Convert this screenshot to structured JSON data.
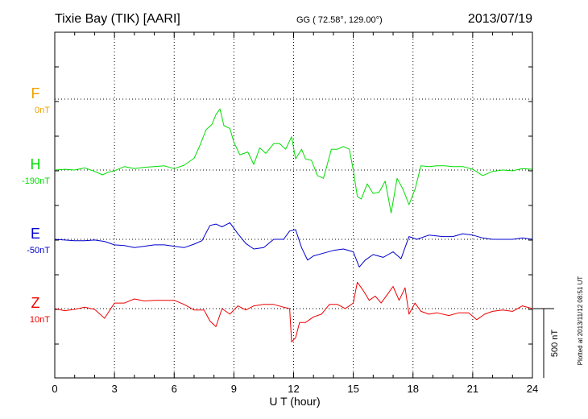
{
  "header": {
    "station": "Tixie Bay (TIK)  [AARI]",
    "coords": "GG ( 72.58°, 129.00°)",
    "date": "2013/07/19"
  },
  "footer": {
    "plotted": "Plotted at 2013/11/12 08:51  UT",
    "scale_label": "500 nT"
  },
  "chart_data": {
    "type": "line",
    "xlabel": "U T (hour)",
    "xlim": [
      0,
      24
    ],
    "xticks": [
      "0",
      "3",
      "6",
      "9",
      "12",
      "15",
      "18",
      "21",
      "24"
    ],
    "scale_bar_nT": 500,
    "grid": true,
    "series": [
      {
        "name": "F",
        "baseline_label": "0nT",
        "color": "#f0a000",
        "values": []
      },
      {
        "name": "H",
        "baseline_label": "-190nT",
        "color": "#00dd00",
        "x": [
          0,
          0.5,
          1,
          1.5,
          2,
          2.4,
          2.7,
          3,
          3.5,
          4,
          4.5,
          5,
          5.5,
          6,
          6.5,
          7,
          7.3,
          7.6,
          7.9,
          8.1,
          8.3,
          8.5,
          8.8,
          9,
          9.3,
          9.7,
          10,
          10.3,
          10.6,
          11,
          11.3,
          11.6,
          11.9,
          12.1,
          12.4,
          12.6,
          12.9,
          13.2,
          13.5,
          13.9,
          14.2,
          14.5,
          14.8,
          15.0,
          15.2,
          15.4,
          15.7,
          16.0,
          16.3,
          16.6,
          16.9,
          17.2,
          17.5,
          17.8,
          18.1,
          18.4,
          18.8,
          19.2,
          19.6,
          20,
          20.5,
          21,
          21.5,
          22,
          22.5,
          23,
          23.5,
          24
        ],
        "y": [
          0,
          5,
          0,
          15,
          -10,
          -35,
          -15,
          -5,
          25,
          10,
          20,
          25,
          30,
          10,
          35,
          85,
          180,
          290,
          330,
          400,
          440,
          320,
          300,
          200,
          110,
          130,
          40,
          160,
          120,
          190,
          190,
          150,
          240,
          80,
          150,
          80,
          70,
          -40,
          -60,
          150,
          150,
          170,
          150,
          0,
          -190,
          -210,
          -100,
          -170,
          -160,
          -80,
          -310,
          -60,
          -140,
          -250,
          -140,
          30,
          25,
          30,
          30,
          25,
          25,
          5,
          -40,
          -10,
          0,
          -5,
          10,
          5
        ]
      },
      {
        "name": "E",
        "baseline_label": "-50nT",
        "color": "#0000cc",
        "x": [
          0,
          0.5,
          1,
          1.5,
          2,
          2.5,
          3,
          3.5,
          4,
          4.5,
          5,
          5.5,
          6,
          6.5,
          7,
          7.4,
          7.8,
          8.1,
          8.4,
          8.8,
          9.2,
          9.6,
          10,
          10.5,
          11,
          11.5,
          11.8,
          12.1,
          12.4,
          12.7,
          13,
          13.5,
          14,
          14.5,
          15,
          15.3,
          15.6,
          16,
          16.5,
          17,
          17.4,
          17.8,
          18.2,
          18.8,
          19.5,
          20,
          20.5,
          21,
          21.5,
          22,
          22.5,
          23,
          23.5,
          24
        ],
        "y": [
          0,
          -5,
          -10,
          -10,
          -5,
          -15,
          -40,
          -45,
          -60,
          -50,
          -40,
          -40,
          -50,
          -60,
          -35,
          -10,
          100,
          110,
          90,
          120,
          40,
          -30,
          -70,
          -60,
          0,
          0,
          60,
          70,
          -60,
          -150,
          -120,
          -100,
          -80,
          -70,
          -90,
          -200,
          -150,
          -110,
          -130,
          -90,
          -140,
          20,
          0,
          30,
          20,
          20,
          40,
          30,
          10,
          0,
          0,
          0,
          10,
          0
        ]
      },
      {
        "name": "Z",
        "baseline_label": "10nT",
        "color": "#ee0000",
        "x": [
          0,
          0.5,
          1,
          1.5,
          2,
          2.5,
          3,
          3.5,
          4,
          4.5,
          5,
          5.5,
          6,
          6.5,
          7,
          7.5,
          7.8,
          8.1,
          8.4,
          8.8,
          9.2,
          9.6,
          10,
          10.5,
          11,
          11.5,
          11.8,
          11.9,
          12.1,
          12.3,
          12.6,
          13,
          13.4,
          13.8,
          14.2,
          14.6,
          15,
          15.2,
          15.5,
          15.8,
          16.1,
          16.4,
          16.8,
          17,
          17.3,
          17.6,
          17.8,
          18.1,
          18.4,
          18.8,
          19.2,
          19.8,
          20.3,
          20.8,
          21.2,
          21.6,
          22,
          22.5,
          23,
          23.5,
          24
        ],
        "y": [
          0,
          -15,
          -5,
          10,
          -5,
          -70,
          40,
          40,
          70,
          55,
          60,
          60,
          60,
          30,
          -10,
          -10,
          -90,
          -130,
          0,
          -40,
          20,
          -10,
          20,
          30,
          30,
          10,
          0,
          -240,
          -210,
          -100,
          -100,
          -60,
          -40,
          30,
          30,
          0,
          40,
          190,
          130,
          60,
          90,
          40,
          120,
          160,
          60,
          150,
          -40,
          40,
          -20,
          -40,
          -30,
          -50,
          -30,
          -30,
          -80,
          -40,
          -20,
          -10,
          -20,
          20,
          0
        ]
      }
    ]
  }
}
